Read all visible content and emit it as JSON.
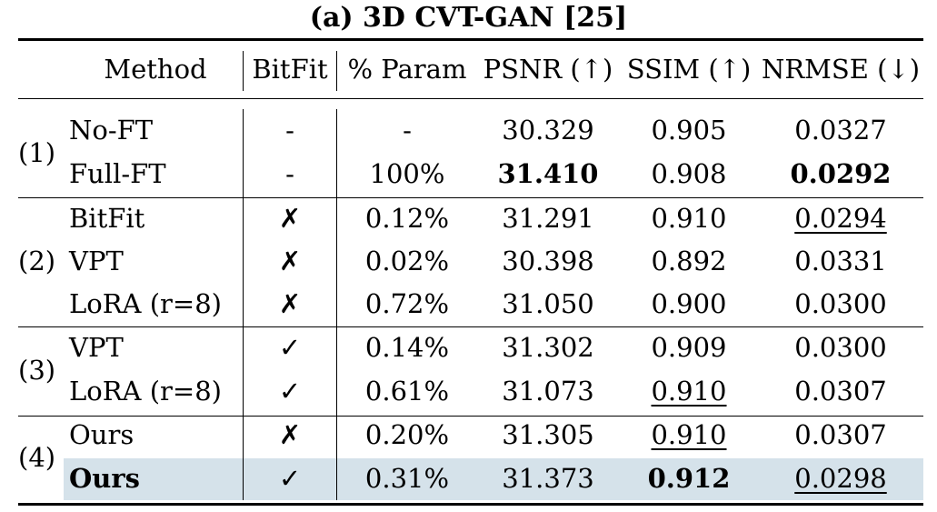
{
  "title": "(a) 3D CVT-GAN [25]",
  "header": {
    "method": "Method",
    "bitfit": "BitFit",
    "param": "% Param",
    "psnr": "PSNR (↑)",
    "ssim": "SSIM (↑)",
    "nrmse": "NRMSE (↓)"
  },
  "groups": [
    {
      "label": "(1)"
    },
    {
      "label": "(2)"
    },
    {
      "label": "(3)"
    },
    {
      "label": "(4)"
    }
  ],
  "rows": [
    {
      "method": "No-FT",
      "bitfit": "-",
      "param": "-",
      "psnr": "30.329",
      "ssim": "0.905",
      "nrmse": "0.0327"
    },
    {
      "method": "Full-FT",
      "bitfit": "-",
      "param": "100%",
      "psnr": "31.410",
      "ssim": "0.908",
      "nrmse": "0.0292"
    },
    {
      "method": "BitFit",
      "bitfit": "✗",
      "param": "0.12%",
      "psnr": "31.291",
      "ssim": "0.910",
      "nrmse": "0.0294"
    },
    {
      "method": "VPT",
      "bitfit": "✗",
      "param": "0.02%",
      "psnr": "30.398",
      "ssim": "0.892",
      "nrmse": "0.0331"
    },
    {
      "method": "LoRA (r=8)",
      "bitfit": "✗",
      "param": "0.72%",
      "psnr": "31.050",
      "ssim": "0.900",
      "nrmse": "0.0300"
    },
    {
      "method": "VPT",
      "bitfit": "✓",
      "param": "0.14%",
      "psnr": "31.302",
      "ssim": "0.909",
      "nrmse": "0.0300"
    },
    {
      "method": "LoRA (r=8)",
      "bitfit": "✓",
      "param": "0.61%",
      "psnr": "31.073",
      "ssim": "0.910",
      "nrmse": "0.0307"
    },
    {
      "method": "Ours",
      "bitfit": "✗",
      "param": "0.20%",
      "psnr": "31.305",
      "ssim": "0.910",
      "nrmse": "0.0307"
    },
    {
      "method": "Ours",
      "bitfit": "✓",
      "param": "0.31%",
      "psnr": "31.373",
      "ssim": "0.912",
      "nrmse": "0.0298"
    }
  ]
}
